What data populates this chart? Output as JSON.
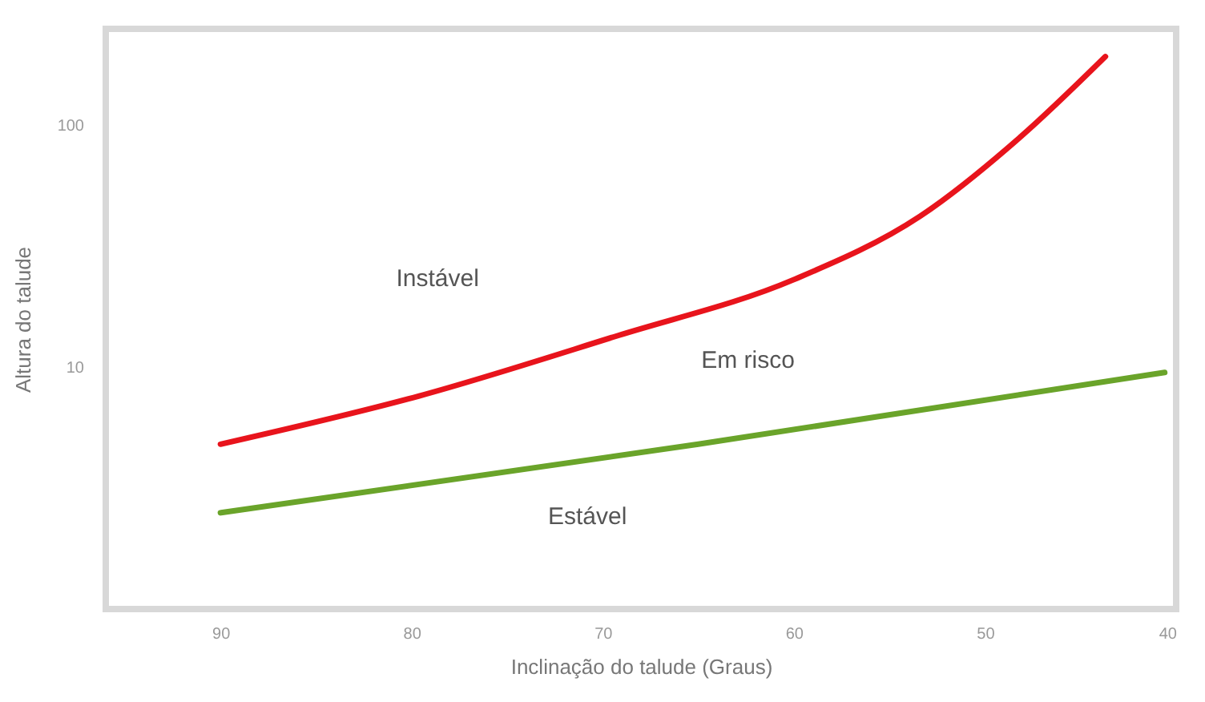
{
  "chart_data": {
    "type": "line",
    "xlabel": "Inclinação do talude (Graus)",
    "ylabel": "Altura do talude",
    "log": "y",
    "xlim": [
      96,
      40
    ],
    "xticks": [
      90,
      80,
      70,
      60,
      50,
      40
    ],
    "ylim": [
      1,
      250
    ],
    "yticks": [
      10,
      100
    ],
    "grid": false,
    "series": [
      {
        "color": "#e8141c",
        "x": [
          90,
          79.6,
          69.2,
          60,
          53.4,
          48.1,
          43.7
        ],
        "values": [
          4.8,
          7.6,
          13.5,
          23,
          42,
          90,
          192
        ]
      },
      {
        "color": "#6aa42a",
        "x": [
          90,
          65,
          40.6
        ],
        "values": [
          2.5,
          4.8,
          9.5
        ]
      }
    ],
    "annotations": [
      "Instável",
      "Em risco",
      "Estável"
    ]
  }
}
